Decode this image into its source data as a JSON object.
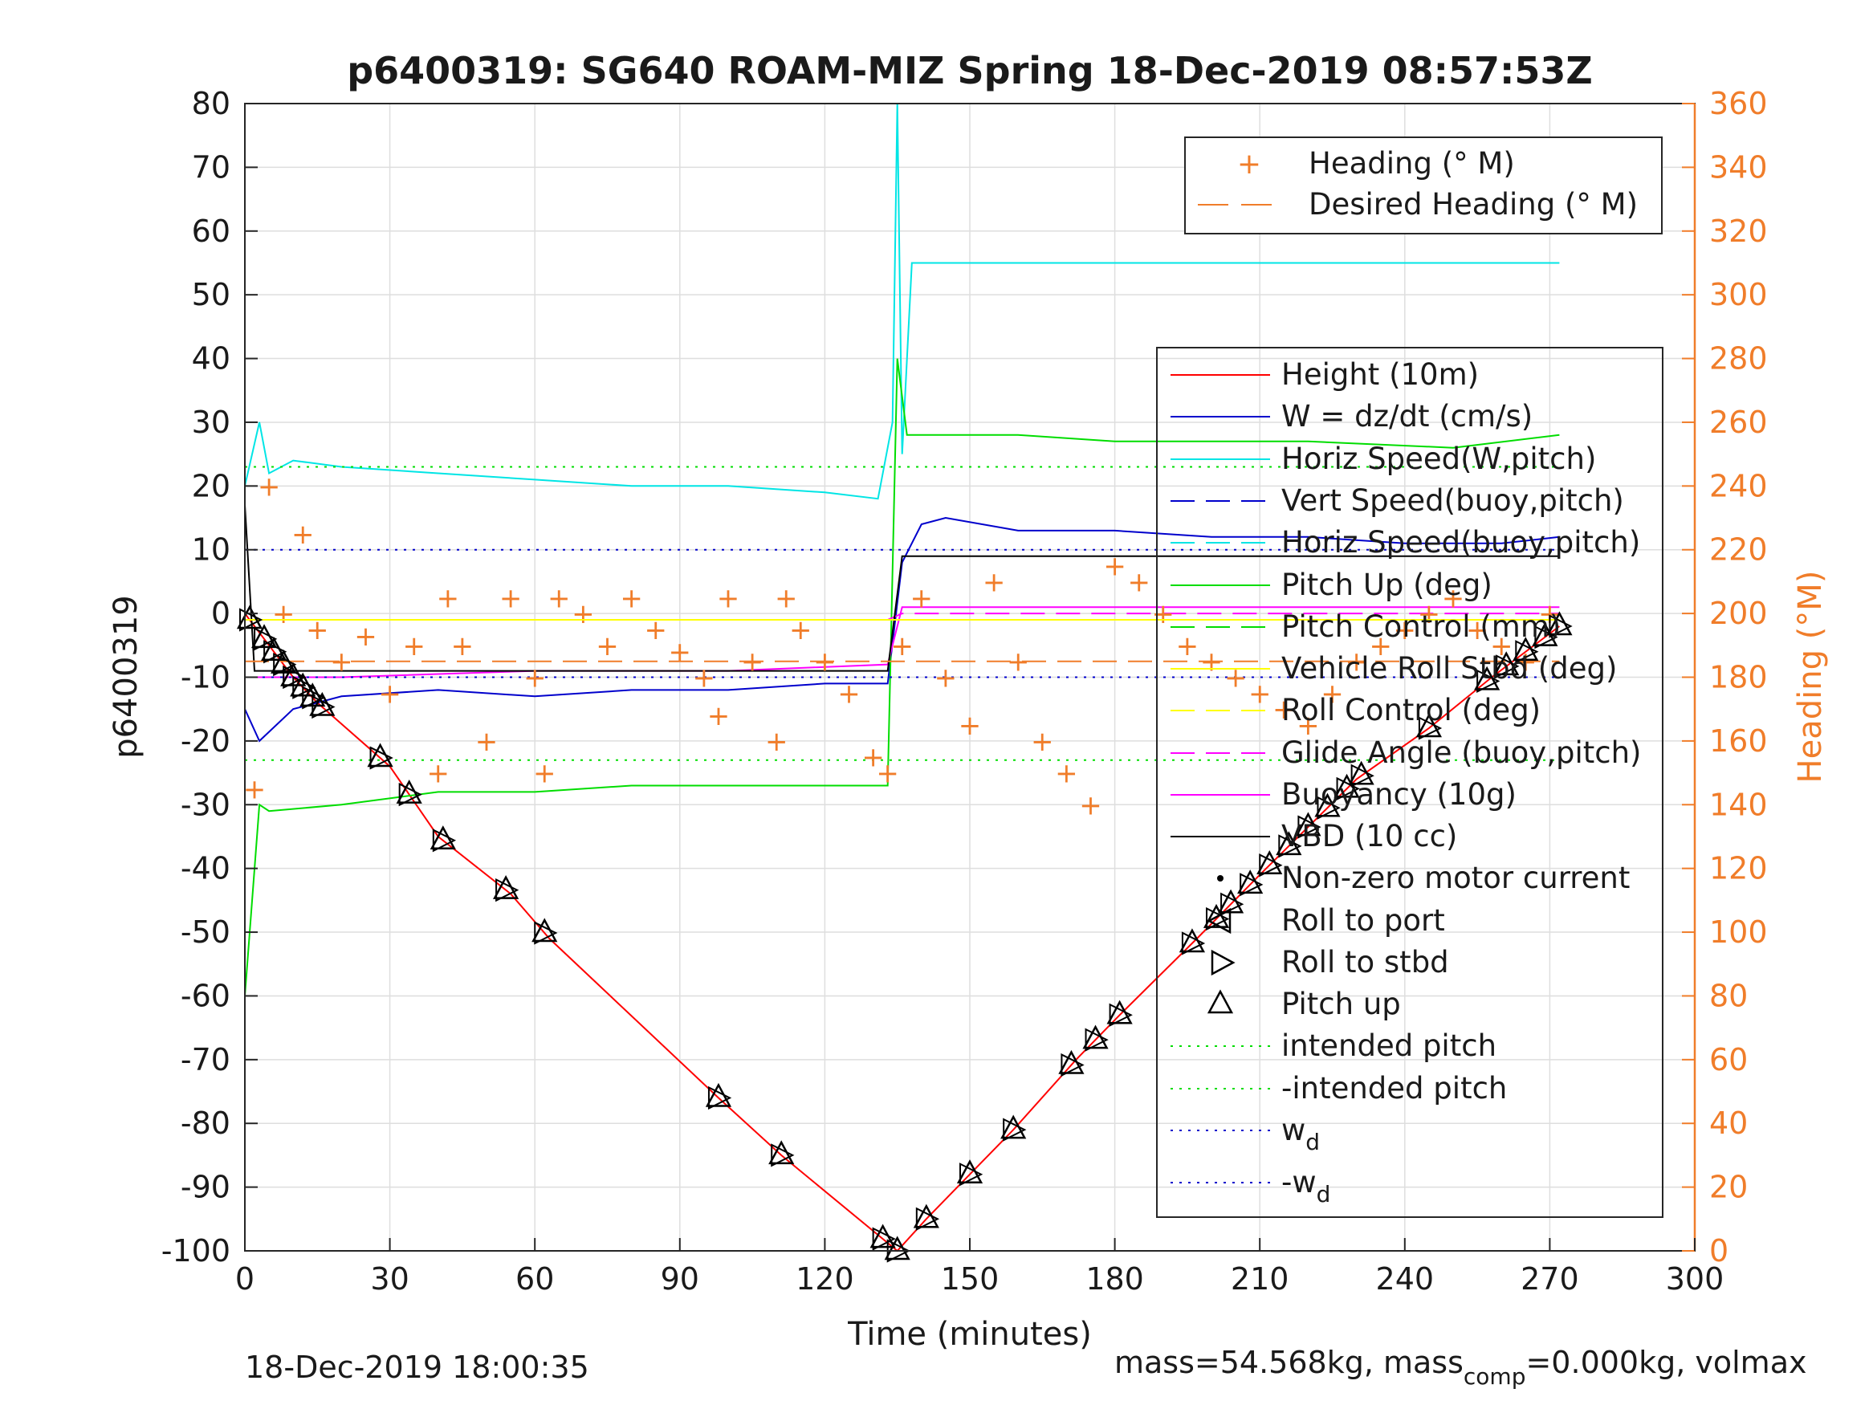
{
  "chart_data": {
    "type": "line",
    "title": "p6400319: SG640 ROAM-MIZ Spring 18-Dec-2019 08:57:53Z",
    "xlabel": "Time (minutes)",
    "ylabel": "p6400319",
    "y2label": "Heading (°M)",
    "xlim": [
      0,
      300
    ],
    "ylim": [
      -100,
      80
    ],
    "y2lim": [
      0,
      360
    ],
    "grid": true,
    "x_ticks": [
      "0",
      "30",
      "60",
      "90",
      "120",
      "150",
      "180",
      "210",
      "240",
      "270",
      "300"
    ],
    "y_ticks": [
      "80",
      "70",
      "60",
      "50",
      "40",
      "30",
      "20",
      "10",
      "0",
      "-10",
      "-20",
      "-30",
      "-40",
      "-50",
      "-60",
      "-70",
      "-80",
      "-90",
      "-100"
    ],
    "y2_ticks": [
      "360",
      "340",
      "320",
      "300",
      "280",
      "260",
      "240",
      "220",
      "200",
      "180",
      "160",
      "140",
      "120",
      "100",
      "80",
      "60",
      "40",
      "20",
      "0"
    ],
    "heading_legend": [
      {
        "label": "Heading (° M)",
        "color": "#f07d2a",
        "style": "plus"
      },
      {
        "label": "Desired Heading (° M)",
        "color": "#f07d2a",
        "style": "dashed"
      }
    ],
    "legend": [
      {
        "label": "Height (10m)",
        "color": "#ff0000",
        "style": "solid"
      },
      {
        "label": "W = dz/dt (cm/s)",
        "color": "#0000cc",
        "style": "solid"
      },
      {
        "label": "Horiz Speed(W,pitch)",
        "color": "#00e5e5",
        "style": "solid"
      },
      {
        "label": "Vert Speed(buoy,pitch)",
        "color": "#0000cc",
        "style": "dashed"
      },
      {
        "label": "Horiz Speed(buoy,pitch)",
        "color": "#00e5e5",
        "style": "dashed"
      },
      {
        "label": "Pitch Up (deg)",
        "color": "#00dd00",
        "style": "solid"
      },
      {
        "label": "Pitch Control (mm)",
        "color": "#00dd00",
        "style": "dashed"
      },
      {
        "label": "Vehicle Roll Stbd (deg)",
        "color": "#ffff00",
        "style": "solid"
      },
      {
        "label": "Roll Control (deg)",
        "color": "#ffff00",
        "style": "dashed"
      },
      {
        "label": "Glide Angle (buoy,pitch)",
        "color": "#ff00ff",
        "style": "dashed"
      },
      {
        "label": "Buoyancy (10g)",
        "color": "#ff00ff",
        "style": "solid"
      },
      {
        "label": "VBD (10 cc)",
        "color": "#000000",
        "style": "solid"
      },
      {
        "label": "Non-zero motor current",
        "color": "#000000",
        "style": "dot"
      },
      {
        "label": "Roll to port",
        "color": "#000000",
        "style": "tri-left"
      },
      {
        "label": "Roll to stbd",
        "color": "#000000",
        "style": "tri-right"
      },
      {
        "label": "Pitch up",
        "color": "#000000",
        "style": "tri-up"
      },
      {
        "label": "intended pitch",
        "color": "#00dd00",
        "style": "dotted"
      },
      {
        "label": "-intended pitch",
        "color": "#00dd00",
        "style": "dotted"
      },
      {
        "label": "w_d",
        "color": "#0000cc",
        "style": "dotted"
      },
      {
        "label": "-w_d",
        "color": "#0000cc",
        "style": "dotted"
      }
    ],
    "series": [
      {
        "name": "Height (10m)",
        "x": [
          0,
          5,
          10,
          15,
          30,
          40,
          55,
          63,
          98,
          111,
          135,
          141,
          150,
          159,
          172,
          181,
          197,
          210,
          230,
          245,
          258,
          272
        ],
        "y": [
          0,
          -5,
          -10,
          -14,
          -24,
          -35,
          -44,
          -51,
          -76,
          -85,
          -100,
          -95,
          -88,
          -81,
          -70,
          -63,
          -51,
          -41,
          -26,
          -18,
          -10,
          -2
        ]
      },
      {
        "name": "W = dz/dt (cm/s)",
        "x": [
          0,
          3,
          10,
          20,
          40,
          60,
          80,
          100,
          120,
          133,
          136,
          140,
          145,
          160,
          180,
          200,
          220,
          240,
          260,
          272
        ],
        "y": [
          -15,
          -20,
          -15,
          -13,
          -12,
          -13,
          -12,
          -12,
          -11,
          -11,
          8,
          14,
          15,
          13,
          13,
          12,
          12,
          11,
          11,
          12
        ]
      },
      {
        "name": "Horiz Speed(W,pitch)",
        "x": [
          0,
          3,
          5,
          10,
          20,
          40,
          60,
          80,
          100,
          120,
          131,
          134,
          135,
          136,
          138,
          150,
          200,
          272
        ],
        "y": [
          20,
          30,
          22,
          24,
          23,
          22,
          21,
          20,
          20,
          19,
          18,
          30,
          80,
          25,
          55,
          55,
          55,
          55
        ]
      },
      {
        "name": "Pitch Up (deg)",
        "x": [
          0,
          3,
          5,
          20,
          40,
          60,
          80,
          100,
          120,
          133,
          135,
          137,
          140,
          160,
          180,
          200,
          220,
          250,
          272
        ],
        "y": [
          -60,
          -30,
          -31,
          -30,
          -28,
          -28,
          -27,
          -27,
          -27,
          -27,
          40,
          28,
          28,
          28,
          27,
          27,
          27,
          26,
          28
        ]
      },
      {
        "name": "Buoyancy (10g)",
        "x": [
          0,
          20,
          60,
          100,
          133,
          136,
          272
        ],
        "y": [
          -10,
          -10,
          -9,
          -9,
          -8,
          1,
          1
        ]
      },
      {
        "name": "Glide Angle (buoy,pitch)",
        "x": [
          0,
          133,
          136,
          272
        ],
        "y": [
          -1,
          -1,
          0,
          0
        ]
      },
      {
        "name": "VBD (10 cc)",
        "x": [
          0,
          2,
          10,
          133,
          136,
          272
        ],
        "y": [
          17,
          -9,
          -9,
          -9,
          9,
          9
        ]
      },
      {
        "name": "intended pitch",
        "x": [
          0,
          272
        ],
        "y": [
          23,
          23
        ]
      },
      {
        "name": "-intended pitch",
        "x": [
          0,
          272
        ],
        "y": [
          -23,
          -23
        ]
      },
      {
        "name": "w_d",
        "x": [
          0,
          272
        ],
        "y": [
          10,
          10
        ]
      },
      {
        "name": "-w_d",
        "x": [
          0,
          272
        ],
        "y": [
          -10,
          -10
        ]
      },
      {
        "name": "Desired Heading (° M)",
        "axis": "right",
        "x": [
          0,
          272
        ],
        "y": [
          185,
          185
        ]
      },
      {
        "name": "Heading (° M)",
        "axis": "right",
        "x": [
          2,
          5,
          8,
          12,
          15,
          20,
          25,
          30,
          35,
          40,
          42,
          45,
          50,
          55,
          60,
          62,
          65,
          70,
          75,
          80,
          85,
          90,
          95,
          98,
          100,
          105,
          110,
          112,
          115,
          120,
          125,
          130,
          133,
          136,
          140,
          145,
          150,
          155,
          160,
          165,
          170,
          175,
          180,
          185,
          190,
          195,
          200,
          205,
          210,
          215,
          220,
          225,
          230,
          235,
          240,
          245,
          250,
          255,
          260,
          265,
          270
        ],
        "y": [
          145,
          240,
          200,
          225,
          195,
          185,
          193,
          175,
          190,
          150,
          205,
          190,
          160,
          205,
          180,
          150,
          205,
          200,
          190,
          205,
          195,
          188,
          180,
          168,
          205,
          185,
          160,
          205,
          195,
          185,
          175,
          155,
          150,
          190,
          205,
          180,
          165,
          210,
          185,
          160,
          150,
          140,
          215,
          210,
          200,
          190,
          185,
          180,
          175,
          170,
          165,
          175,
          185,
          190,
          195,
          200,
          205,
          195,
          190,
          185,
          200
        ]
      },
      {
        "name": "Vehicle Roll Stbd (deg)",
        "x": [
          0,
          272
        ],
        "y": [
          -1,
          -1
        ]
      },
      {
        "name": "Roll Control (deg)",
        "x": [
          0,
          272
        ],
        "y": [
          -1,
          -1
        ]
      }
    ],
    "pitch_up_markers_x": [
      1,
      4,
      6,
      8,
      10,
      12,
      14,
      16,
      28,
      34,
      41,
      54,
      62,
      98,
      111,
      132,
      135,
      141,
      150,
      159,
      171,
      176,
      181,
      196,
      201,
      204,
      208,
      212,
      216,
      220,
      224,
      228,
      231,
      245,
      257,
      261,
      265,
      269,
      272
    ]
  },
  "footer": {
    "timestamp": "18-Dec-2019 18:00:35",
    "mass_text": "mass=54.568kg, mass",
    "mass_sub": "comp",
    "mass_rest": "=0.000kg, volmax"
  }
}
